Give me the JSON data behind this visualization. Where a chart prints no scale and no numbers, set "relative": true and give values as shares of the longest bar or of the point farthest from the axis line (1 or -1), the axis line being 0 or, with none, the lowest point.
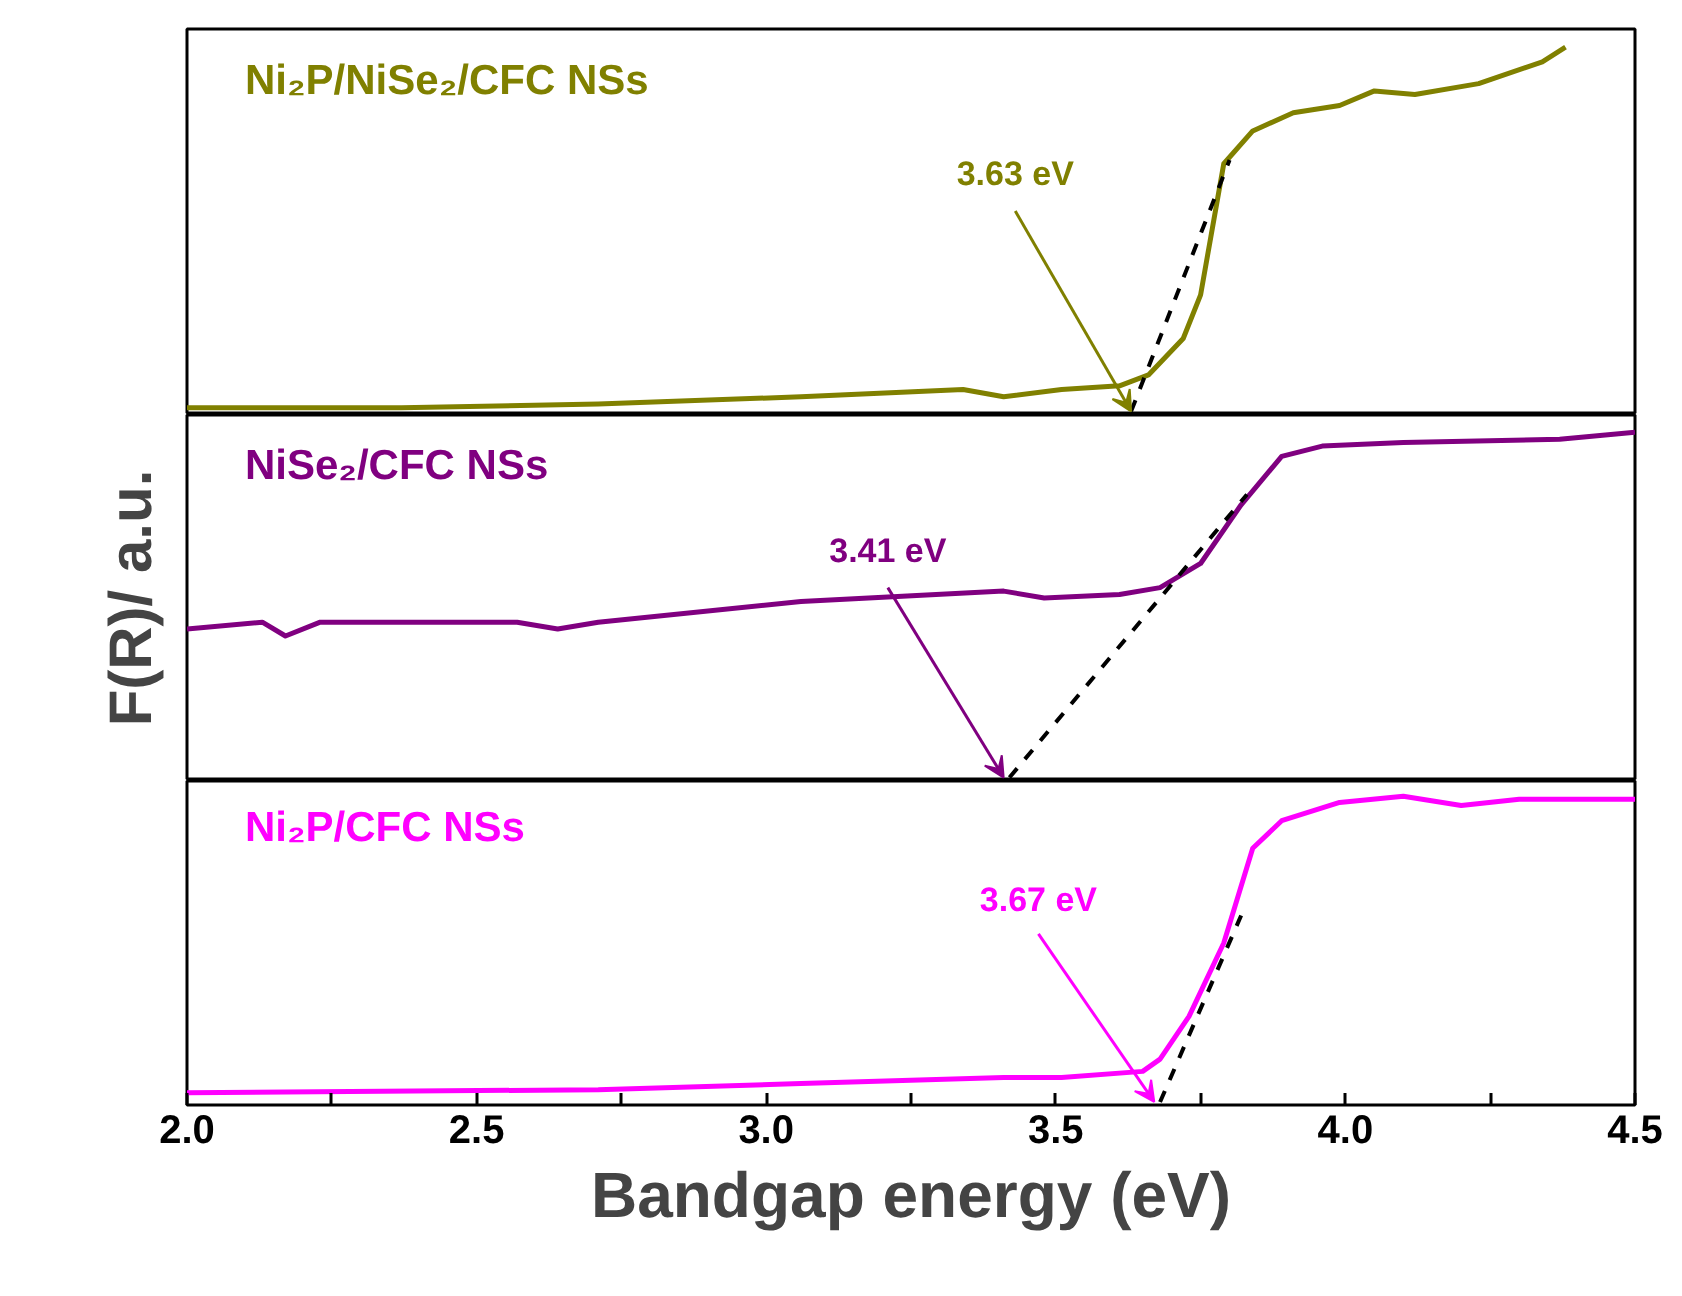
{
  "chart_data": [
    {
      "type": "line",
      "relative": true,
      "xlim": [
        2.0,
        4.5
      ],
      "tick_labels": false,
      "grid": false,
      "annotations": [
        {
          "text": "3.63 eV",
          "x": 3.63,
          "y": 0
        }
      ],
      "series": [
        {
          "name": "Ni₂P/NiSe₂/CFC NSs",
          "color": "#808000",
          "x": [
            2.0,
            2.37,
            2.71,
            3.06,
            3.34,
            3.41,
            3.51,
            3.61,
            3.66,
            3.72,
            3.75,
            3.79,
            3.84,
            3.91,
            3.99,
            4.05,
            4.12,
            4.23,
            4.34,
            4.38
          ],
          "values": [
            0.01,
            0.01,
            0.02,
            0.04,
            0.06,
            0.04,
            0.06,
            0.07,
            0.1,
            0.2,
            0.32,
            0.68,
            0.77,
            0.82,
            0.84,
            0.88,
            0.87,
            0.9,
            0.96,
            1.0
          ]
        },
        {
          "type": "line",
          "color": "#000000",
          "line_style": "dashed",
          "x": [
            3.63,
            3.8
          ],
          "values": [
            0,
            0.69
          ]
        }
      ]
    },
    {
      "type": "line",
      "relative": true,
      "xlim": [
        2.0,
        4.5
      ],
      "tick_labels": false,
      "grid": false,
      "ylabel": "F(R)/ a.u.",
      "annotations": [
        {
          "text": "3.41 eV",
          "x": 3.41,
          "y": 0
        }
      ],
      "series": [
        {
          "name": "NiSe₂/CFC NSs",
          "color": "#800080",
          "x": [
            2.0,
            2.13,
            2.17,
            2.23,
            2.57,
            2.64,
            2.71,
            3.06,
            3.41,
            3.48,
            3.61,
            3.68,
            3.75,
            3.82,
            3.89,
            3.96,
            4.1,
            4.37,
            4.5
          ],
          "values": [
            0.43,
            0.45,
            0.41,
            0.45,
            0.45,
            0.43,
            0.45,
            0.51,
            0.54,
            0.52,
            0.53,
            0.55,
            0.62,
            0.79,
            0.93,
            0.96,
            0.97,
            0.98,
            1.0
          ]
        },
        {
          "type": "line",
          "color": "#000000",
          "line_style": "dashed",
          "x": [
            3.42,
            3.83
          ],
          "values": [
            0,
            0.82
          ]
        }
      ]
    },
    {
      "type": "line",
      "relative": true,
      "xlim": [
        2.0,
        4.5
      ],
      "tick_labels": "x",
      "grid": false,
      "xlabel": "Bandgap energy (eV)",
      "xticks": [
        {
          "value": 2.0,
          "label": "2.0"
        },
        {
          "value": 2.25,
          "label": null
        },
        {
          "value": 2.5,
          "label": "2.5"
        },
        {
          "value": 2.75,
          "label": null
        },
        {
          "value": 3.0,
          "label": "3.0"
        },
        {
          "value": 3.25,
          "label": null
        },
        {
          "value": 3.5,
          "label": "3.5"
        },
        {
          "value": 3.75,
          "label": null
        },
        {
          "value": 4.0,
          "label": "4.0"
        },
        {
          "value": 4.25,
          "label": null
        },
        {
          "value": 4.5,
          "label": "4.5"
        }
      ],
      "annotations": [
        {
          "text": "3.67 eV",
          "x": 3.67,
          "y": 0
        }
      ],
      "series": [
        {
          "name": "Ni₂P/CFC NSs",
          "color": "#ff00ff",
          "x": [
            2.0,
            2.71,
            3.06,
            3.41,
            3.51,
            3.65,
            3.68,
            3.73,
            3.79,
            3.84,
            3.89,
            3.99,
            4.1,
            4.2,
            4.3,
            4.5
          ],
          "values": [
            0.03,
            0.04,
            0.06,
            0.08,
            0.08,
            0.1,
            0.14,
            0.28,
            0.52,
            0.83,
            0.92,
            0.98,
            1.0,
            0.97,
            0.99,
            0.99
          ]
        },
        {
          "type": "line",
          "color": "#000000",
          "line_style": "dashed",
          "x": [
            3.68,
            3.82
          ],
          "values": [
            0,
            0.61
          ]
        }
      ]
    }
  ]
}
